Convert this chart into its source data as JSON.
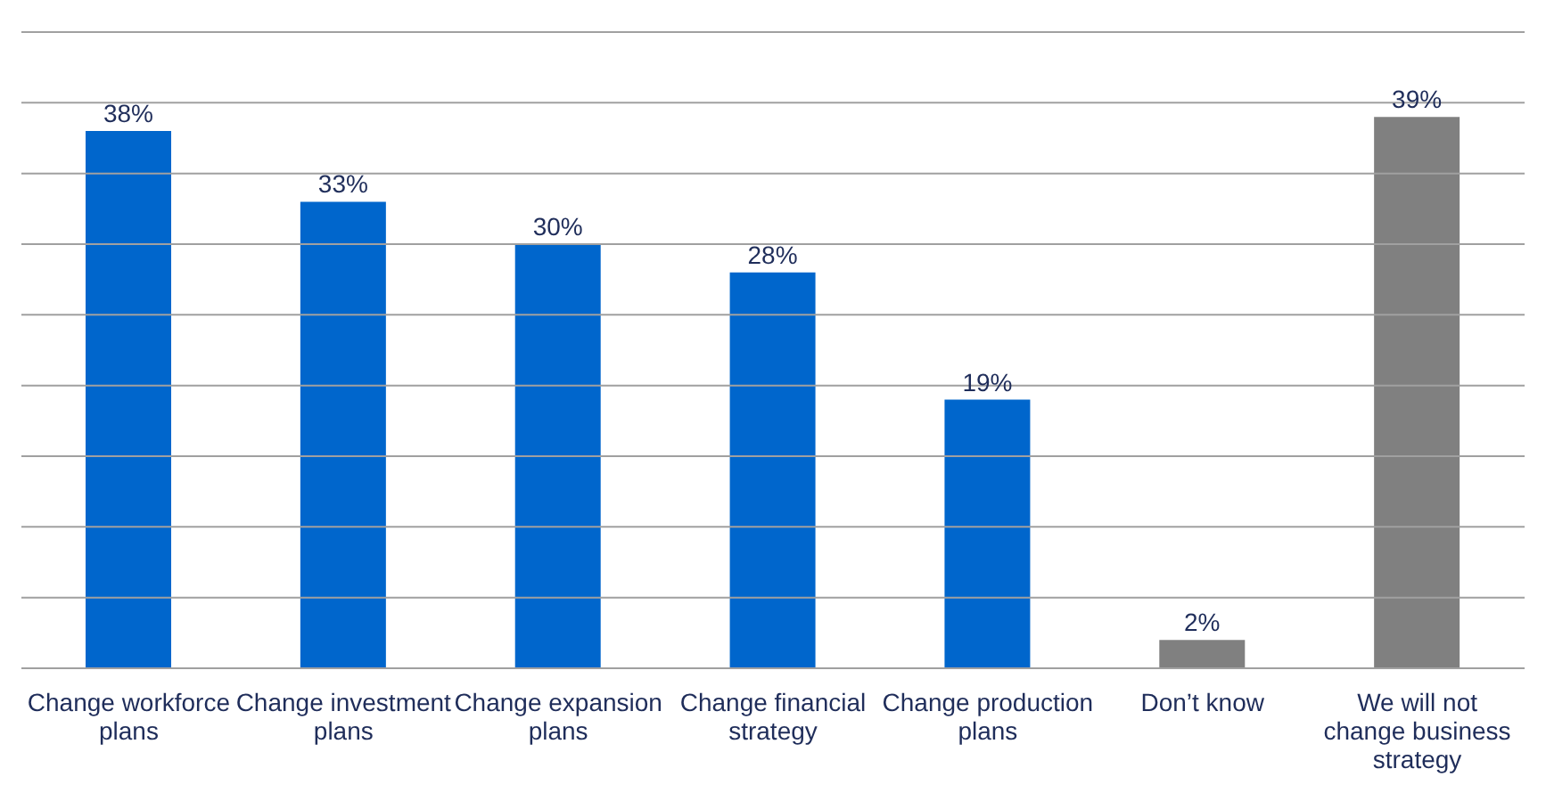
{
  "chart_data": {
    "type": "bar",
    "categories": [
      "Change workforce plans",
      "Change investment plans",
      "Change expansion plans",
      "Change financial strategy",
      "Change production plans",
      "Don’t know",
      "We will not change business strategy"
    ],
    "values": [
      38,
      33,
      30,
      28,
      19,
      2,
      39
    ],
    "colors": [
      "#0066cc",
      "#0066cc",
      "#0066cc",
      "#0066cc",
      "#0066cc",
      "#808080",
      "#808080"
    ],
    "value_labels": [
      "38%",
      "33%",
      "30%",
      "28%",
      "19%",
      "2%",
      "39%"
    ],
    "ylim": [
      0,
      45
    ],
    "yticks": [
      {
        "value": 0,
        "label": null
      },
      {
        "value": 5,
        "label": null
      },
      {
        "value": 10,
        "label": null
      },
      {
        "value": 15,
        "label": null
      },
      {
        "value": 20,
        "label": null
      },
      {
        "value": 25,
        "label": null
      },
      {
        "value": 30,
        "label": null
      },
      {
        "value": 35,
        "label": null
      },
      {
        "value": 40,
        "label": null
      },
      {
        "value": 45,
        "label": null
      }
    ],
    "grid": "y",
    "tick_labels": "x"
  }
}
